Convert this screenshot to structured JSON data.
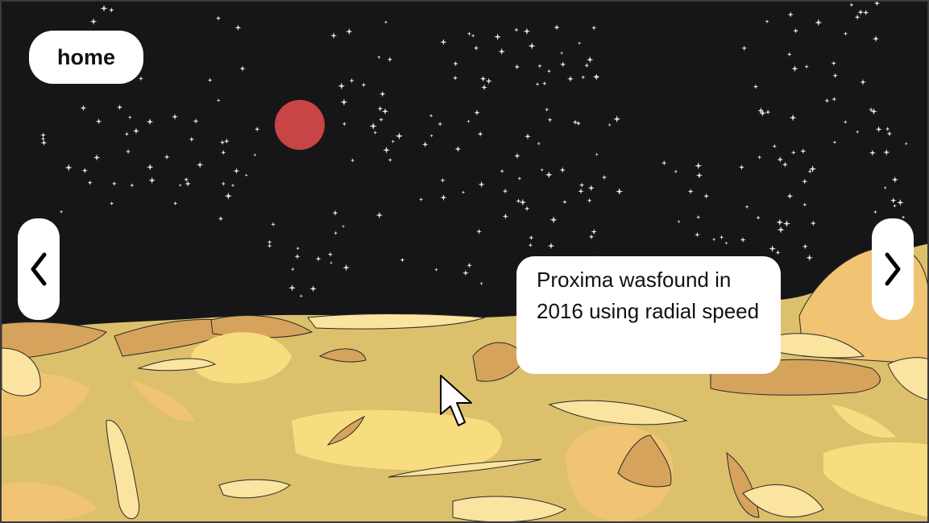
{
  "nav": {
    "home_label": "home",
    "prev_icon": "chevron-left-icon",
    "next_icon": "chevron-right-icon"
  },
  "info": {
    "text": "Proxima wasfound in 2016 using radial speed"
  },
  "scene": {
    "sky_color": "#161618",
    "star_color": "#e6e6e6",
    "planet_color": "#c94444",
    "ground_colors": [
      "#dcc06c",
      "#f8dd80",
      "#d6a35c",
      "#fbe3a0",
      "#f0c472"
    ]
  }
}
